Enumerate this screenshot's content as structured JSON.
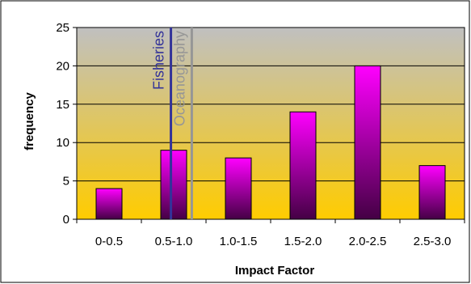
{
  "chart_data": {
    "type": "bar",
    "categories": [
      "0-0.5",
      "0.5-1.0",
      "1.0-1.5",
      "1.5-2.0",
      "2.0-2.5",
      "2.5-3.0"
    ],
    "values": [
      4,
      9,
      8,
      14,
      20,
      7
    ],
    "xlabel": "Impact Factor",
    "ylabel": "frequency",
    "ylim": [
      0,
      25
    ],
    "yticks": [
      0,
      5,
      10,
      15,
      20,
      25
    ],
    "grid": true,
    "legend": "none",
    "bar_gradient": [
      "#ff00ff",
      "#440044"
    ],
    "background_gradient": [
      "#c0c0c0",
      "#ffcc00"
    ],
    "markers": [
      {
        "label": "Fisheries",
        "x": 0.957,
        "color": "#333399"
      },
      {
        "label": "Oceanography",
        "x": 1.28,
        "color": "#969696"
      }
    ]
  }
}
